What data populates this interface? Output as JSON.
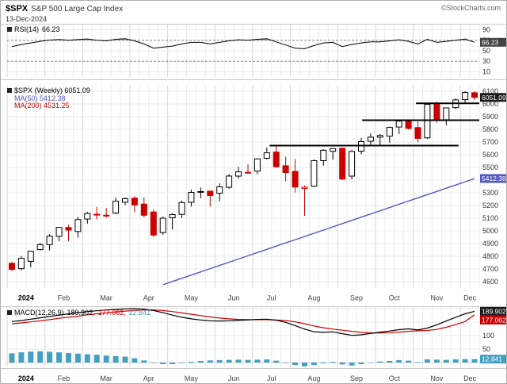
{
  "header": {
    "symbol": "$SPX",
    "name": "S&P 500 Large Cap Index",
    "date": "13-Dec-2024",
    "credit": "©StockCharts.com"
  },
  "legends": {
    "rsi": {
      "label": "RSI(14)",
      "value": "66.23"
    },
    "price": {
      "symbol_line": "$SPX (Weekly) 6051.09",
      "ma50": "MA(50) 5412.38",
      "ma200": "MA(200) 4531.25"
    },
    "macd": {
      "label": "MACD(12,26,9)",
      "macd_value": "189.902,",
      "signal_value": "177.062,",
      "hist_value": "12.841"
    }
  },
  "badges": {
    "rsi": "66.23",
    "price": "6051.09",
    "ma50": "5412.38",
    "macd": "189.902",
    "signal": "177.062",
    "hist": "12.841"
  },
  "colors": {
    "up_stroke": "#000000",
    "up_fill": "#ffffff",
    "down": "#cc0000",
    "ma50": "#5557c6",
    "macd_line": "#000000",
    "signal": "#cc0000",
    "hist": "#459fc0",
    "rsi_line": "#000000",
    "rsi_fill": "#93ab93",
    "trend": "#000000",
    "grid": "#e9ece9",
    "grid_month": "#d2d8d2",
    "badge_dark": "#1a1a1a"
  },
  "chart_data": {
    "type": "candlestick",
    "title": "$SPX (Weekly)",
    "timeframe": "Weekly",
    "as_of": "13-Dec-2024",
    "last_close": 6051.09,
    "ylim": [
      4550,
      6150
    ],
    "price_ticks": [
      6100,
      6000,
      5900,
      5800,
      5700,
      5600,
      5500,
      5400,
      5300,
      5200,
      5100,
      5000,
      4900,
      4800,
      4700,
      4600
    ],
    "months": [
      {
        "label": "2024",
        "week": 0,
        "bold": true
      },
      {
        "label": "Feb",
        "week": 4
      },
      {
        "label": "Mar",
        "week": 8
      },
      {
        "label": "Apr",
        "week": 13
      },
      {
        "label": "May",
        "week": 17
      },
      {
        "label": "Jun",
        "week": 22
      },
      {
        "label": "Jul",
        "week": 26
      },
      {
        "label": "Aug",
        "week": 30
      },
      {
        "label": "Sep",
        "week": 35
      },
      {
        "label": "Oct",
        "week": 39
      },
      {
        "label": "Nov",
        "week": 43
      },
      {
        "label": "Dec",
        "week": 48
      }
    ],
    "candles": [
      [
        4745,
        4754,
        4682,
        4697,
        "d"
      ],
      [
        4703,
        4802,
        4688,
        4784,
        "u"
      ],
      [
        4760,
        4842,
        4714,
        4840,
        "u"
      ],
      [
        4853,
        4906,
        4844,
        4891,
        "u"
      ],
      [
        4892,
        4975,
        4845,
        4959,
        "u"
      ],
      [
        4957,
        5030,
        4918,
        5027,
        "u"
      ],
      [
        5026,
        5048,
        4920,
        5006,
        "d"
      ],
      [
        4995,
        5111,
        4946,
        5089,
        "u"
      ],
      [
        5093,
        5149,
        5057,
        5137,
        "u"
      ],
      [
        5131,
        5189,
        5092,
        5124,
        "d"
      ],
      [
        5123,
        5180,
        5104,
        5117,
        "d"
      ],
      [
        5140,
        5261,
        5131,
        5234,
        "u"
      ],
      [
        5226,
        5264,
        5203,
        5254,
        "u"
      ],
      [
        5258,
        5274,
        5146,
        5204,
        "d"
      ],
      [
        5211,
        5266,
        5107,
        5123,
        "d"
      ],
      [
        5149,
        5168,
        4953,
        4967,
        "d"
      ],
      [
        4987,
        5114,
        4969,
        5100,
        "u"
      ],
      [
        5103,
        5139,
        5011,
        5128,
        "u"
      ],
      [
        5130,
        5239,
        5101,
        5223,
        "u"
      ],
      [
        5225,
        5325,
        5191,
        5303,
        "u"
      ],
      [
        5305,
        5341,
        5256,
        5310,
        "u"
      ],
      [
        5313,
        5315,
        5191,
        5278,
        "d"
      ],
      [
        5297,
        5375,
        5234,
        5347,
        "u"
      ],
      [
        5343,
        5447,
        5331,
        5432,
        "u"
      ],
      [
        5431,
        5505,
        5413,
        5465,
        "u"
      ],
      [
        5461,
        5523,
        5451,
        5460,
        "d"
      ],
      [
        5471,
        5570,
        5446,
        5567,
        "u"
      ],
      [
        5572,
        5656,
        5562,
        5615,
        "u"
      ],
      [
        5621,
        5670,
        5497,
        5505,
        "d"
      ],
      [
        5513,
        5585,
        5390,
        5459,
        "d"
      ],
      [
        5469,
        5567,
        5302,
        5346,
        "d"
      ],
      [
        5334,
        5358,
        5119,
        5344,
        "dh"
      ],
      [
        5352,
        5561,
        5345,
        5554,
        "u"
      ],
      [
        5553,
        5643,
        5513,
        5635,
        "u"
      ],
      [
        5627,
        5651,
        5560,
        5648,
        "u"
      ],
      [
        5651,
        5655,
        5402,
        5408,
        "d"
      ],
      [
        5431,
        5636,
        5406,
        5626,
        "u"
      ],
      [
        5628,
        5733,
        5604,
        5703,
        "u"
      ],
      [
        5706,
        5767,
        5674,
        5738,
        "u"
      ],
      [
        5738,
        5763,
        5674,
        5751,
        "u"
      ],
      [
        5746,
        5822,
        5695,
        5815,
        "u"
      ],
      [
        5818,
        5878,
        5762,
        5865,
        "u"
      ],
      [
        5864,
        5872,
        5797,
        5808,
        "d"
      ],
      [
        5814,
        5862,
        5697,
        5729,
        "d"
      ],
      [
        5733,
        5999,
        5724,
        5996,
        "u"
      ],
      [
        5997,
        6017,
        5853,
        5871,
        "d"
      ],
      [
        5876,
        5972,
        5832,
        5969,
        "u"
      ],
      [
        5971,
        6044,
        5960,
        6032,
        "u"
      ],
      [
        6034,
        6100,
        6003,
        6090,
        "u"
      ],
      [
        6088,
        6099,
        6031,
        6051.09,
        "d"
      ]
    ],
    "ma50": {
      "label": "MA(50)",
      "last": 5412.38,
      "start": 4170,
      "step": 25.35
    },
    "ma200": {
      "label": "MA(200)",
      "last": 4531.25,
      "visible": false
    },
    "trendlines": [
      {
        "price": 6005,
        "w1": 43.3,
        "w2": 50
      },
      {
        "price": 5872,
        "w1": 37.6,
        "w2": 50
      },
      {
        "price": 5672,
        "w1": 27.8,
        "w2": 47.8
      }
    ],
    "rsi": {
      "period": 14,
      "last": 66.23,
      "ticks": [
        90,
        70,
        50,
        30,
        10
      ],
      "overbought": 70,
      "oversold": 30,
      "values": [
        58,
        62,
        65,
        68,
        70.5,
        71.5,
        70,
        71.5,
        72.5,
        70,
        69,
        72,
        73,
        69,
        63,
        55,
        57,
        59,
        63,
        66,
        66,
        63,
        66,
        69,
        71,
        70,
        72,
        73,
        67,
        61,
        55,
        54,
        60,
        65,
        66,
        58,
        62,
        65,
        67,
        67,
        69,
        71,
        68,
        63,
        72,
        66,
        68,
        70,
        72.5,
        66.23
      ]
    },
    "macd": {
      "fast": 12,
      "slow": 26,
      "signal_period": 9,
      "last_macd": 189.902,
      "last_signal": 177.062,
      "last_hist": 12.841,
      "ticks": [
        100,
        50
      ],
      "macd": [
        152,
        156,
        161,
        166,
        171,
        176,
        181,
        185,
        189,
        192,
        195,
        197,
        199,
        200,
        198,
        193,
        185,
        176,
        168,
        162,
        158,
        155,
        154,
        155,
        157,
        158,
        160,
        161,
        157,
        149,
        137,
        124,
        114,
        112,
        114,
        107,
        101,
        103,
        108,
        113,
        117,
        122,
        125,
        121,
        128,
        140,
        154,
        168,
        181,
        189.902
      ],
      "signal": [
        144,
        147,
        151,
        155,
        159,
        164,
        168,
        172,
        177,
        181,
        184,
        188,
        191,
        193,
        195,
        195,
        193,
        189,
        184,
        179,
        174,
        169,
        165,
        162,
        160,
        159,
        159,
        159,
        158,
        156,
        151,
        144,
        136,
        129,
        124,
        120,
        116,
        112,
        110,
        110,
        111,
        113,
        116,
        118,
        119,
        123,
        131,
        141,
        152,
        177.062
      ],
      "hist": [
        34,
        38,
        41,
        42,
        40,
        38,
        35,
        33,
        31,
        29,
        26,
        24,
        22,
        16,
        8,
        0,
        -6,
        -6,
        -2,
        3,
        6,
        8,
        9,
        10,
        11,
        10,
        11,
        12,
        7,
        -1,
        -9,
        -14,
        -9,
        -3,
        3,
        -7,
        -11,
        -6,
        1,
        4,
        6,
        9,
        7,
        2,
        12,
        11,
        10,
        12,
        13,
        12.841
      ]
    }
  }
}
